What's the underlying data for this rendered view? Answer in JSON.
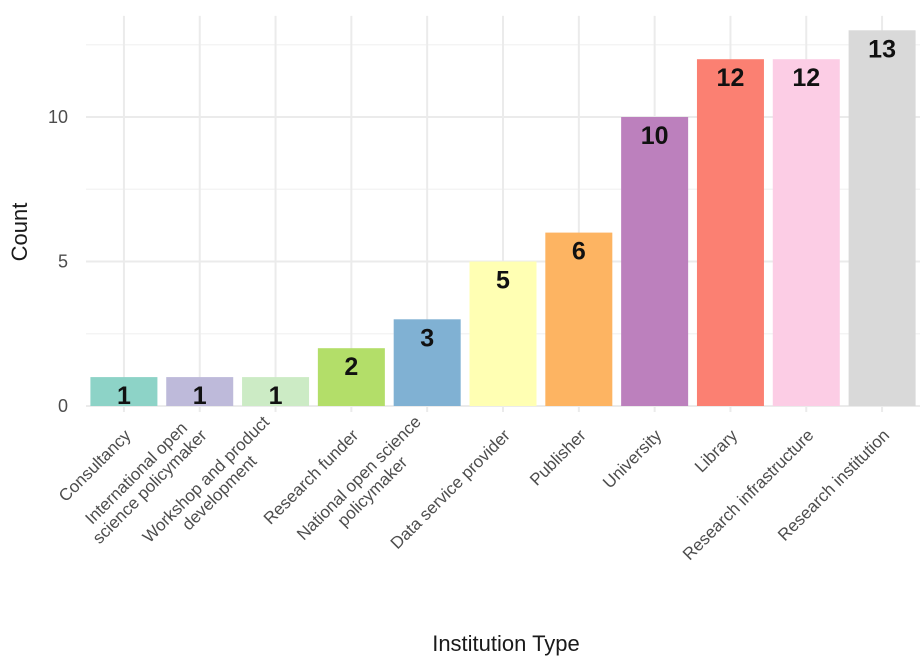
{
  "chart_data": {
    "type": "bar",
    "xlabel": "Institution Type",
    "ylabel": "Count",
    "ylim": [
      0,
      13.5
    ],
    "yticks": [
      0,
      5,
      10
    ],
    "grid": true,
    "legend": "none",
    "categories": [
      [
        "Consultancy"
      ],
      [
        "International open",
        "science policymaker"
      ],
      [
        "Workshop and product",
        "development"
      ],
      [
        "Research funder"
      ],
      [
        "National open science",
        "policymaker"
      ],
      [
        "Data service provider"
      ],
      [
        "Publisher"
      ],
      [
        "University"
      ],
      [
        "Library"
      ],
      [
        "Research infrastructure"
      ],
      [
        "Research institution"
      ]
    ],
    "values": [
      1,
      1,
      1,
      2,
      3,
      5,
      6,
      10,
      12,
      12,
      13
    ],
    "colors": [
      "#8dd3c7",
      "#bebada",
      "#ccebc5",
      "#b3de69",
      "#80b1d3",
      "#ffffb3",
      "#fdb462",
      "#bc80bd",
      "#fb8072",
      "#fccde5",
      "#d9d9d9"
    ]
  }
}
